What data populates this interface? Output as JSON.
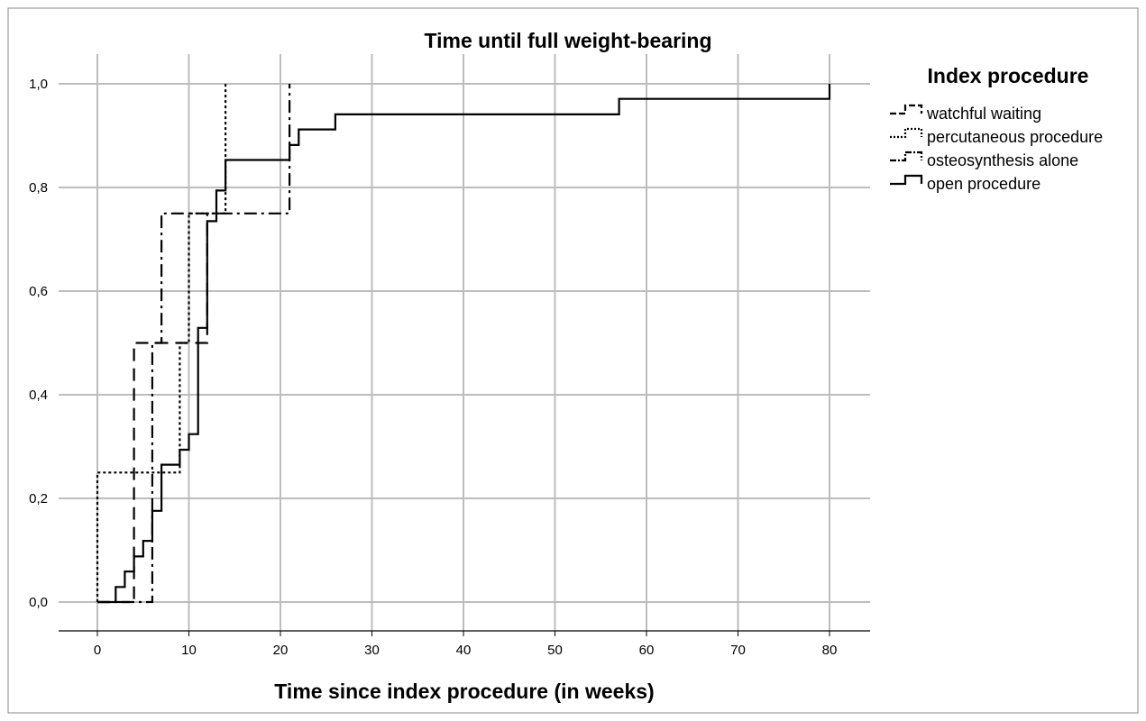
{
  "chart_data": {
    "type": "line",
    "title": "Time until full weight-bearing",
    "xlabel": "Time since index procedure (in weeks)",
    "ylabel": "",
    "xlim": [
      0,
      80
    ],
    "ylim": [
      0,
      1
    ],
    "x_ticks": [
      "0",
      "10",
      "20",
      "30",
      "40",
      "50",
      "60",
      "70",
      "80"
    ],
    "y_ticks": [
      "0,0",
      "0,2",
      "0,4",
      "0,6",
      "0,8",
      "1,0"
    ],
    "grid": true,
    "legend": {
      "title": "Index procedure",
      "placement": "right",
      "entries": [
        "watchful waiting",
        "percutaneous procedure",
        "osteosynthesis alone",
        "open procedure"
      ]
    },
    "series": [
      {
        "name": "watchful waiting",
        "style": "dashed",
        "step": true,
        "x": [
          0,
          4,
          4,
          12,
          12
        ],
        "y": [
          0,
          0,
          0.5,
          0.5,
          0.75
        ]
      },
      {
        "name": "percutaneous procedure",
        "style": "dotted",
        "step": true,
        "x": [
          0,
          0,
          9,
          9,
          10,
          10,
          14,
          14
        ],
        "y": [
          0,
          0.25,
          0.25,
          0.5,
          0.5,
          0.75,
          0.75,
          1.0
        ]
      },
      {
        "name": "osteosynthesis alone",
        "style": "dashdot",
        "step": true,
        "x": [
          0,
          6,
          6,
          7,
          7,
          21,
          21
        ],
        "y": [
          0,
          0,
          0.5,
          0.5,
          0.75,
          0.75,
          1.0
        ]
      },
      {
        "name": "open procedure",
        "style": "solid",
        "step": true,
        "x": [
          0,
          2,
          2,
          3,
          3,
          4,
          4,
          5,
          5,
          6,
          6,
          7,
          7,
          9,
          9,
          10,
          10,
          11,
          11,
          12,
          12,
          13,
          13,
          14,
          14,
          21,
          21,
          22,
          22,
          26,
          26,
          32,
          32,
          57,
          57,
          80,
          80
        ],
        "y": [
          0,
          0,
          0.029,
          0.029,
          0.059,
          0.059,
          0.088,
          0.088,
          0.118,
          0.118,
          0.176,
          0.176,
          0.265,
          0.265,
          0.294,
          0.294,
          0.324,
          0.324,
          0.529,
          0.529,
          0.735,
          0.735,
          0.794,
          0.794,
          0.853,
          0.853,
          0.882,
          0.882,
          0.912,
          0.912,
          0.941,
          0.941,
          0.941,
          0.941,
          0.971,
          0.971,
          1.0
        ]
      }
    ]
  }
}
